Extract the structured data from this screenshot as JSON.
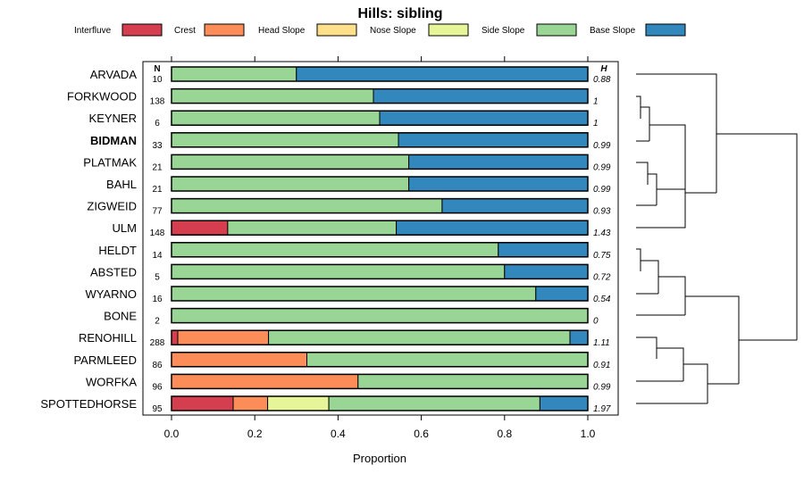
{
  "chart_data": {
    "type": "bar",
    "orientation": "horizontal",
    "stacked": true,
    "title": "Hills: sibling",
    "xlabel": "Proportion",
    "xlim": [
      0,
      1
    ],
    "x_ticks": [
      "0.0",
      "0.2",
      "0.4",
      "0.6",
      "0.8",
      "1.0"
    ],
    "n_header": "N",
    "h_header": "H",
    "legend_position": "top",
    "series": [
      {
        "name": "Interfluve",
        "color": "#d53e4f"
      },
      {
        "name": "Crest",
        "color": "#fc8d59"
      },
      {
        "name": "Head Slope",
        "color": "#fee08b"
      },
      {
        "name": "Nose Slope",
        "color": "#e6f598"
      },
      {
        "name": "Side Slope",
        "color": "#99d594"
      },
      {
        "name": "Base Slope",
        "color": "#3288bd"
      }
    ],
    "categories": [
      {
        "name": "ARVADA",
        "n": "10",
        "h": "0.88",
        "bold": false,
        "values": [
          0,
          0,
          0,
          0,
          0.3,
          0.7
        ]
      },
      {
        "name": "FORKWOOD",
        "n": "138",
        "h": "1",
        "bold": false,
        "values": [
          0,
          0,
          0,
          0,
          0.485,
          0.515
        ]
      },
      {
        "name": "KEYNER",
        "n": "6",
        "h": "1",
        "bold": false,
        "values": [
          0,
          0,
          0,
          0,
          0.5,
          0.5
        ]
      },
      {
        "name": "BIDMAN",
        "n": "33",
        "h": "0.99",
        "bold": true,
        "values": [
          0,
          0,
          0,
          0,
          0.545,
          0.455
        ]
      },
      {
        "name": "PLATMAK",
        "n": "21",
        "h": "0.99",
        "bold": false,
        "values": [
          0,
          0,
          0,
          0,
          0.57,
          0.43
        ]
      },
      {
        "name": "BAHL",
        "n": "21",
        "h": "0.99",
        "bold": false,
        "values": [
          0,
          0,
          0,
          0,
          0.57,
          0.43
        ]
      },
      {
        "name": "ZIGWEID",
        "n": "77",
        "h": "0.93",
        "bold": false,
        "values": [
          0,
          0,
          0,
          0,
          0.65,
          0.35
        ]
      },
      {
        "name": "ULM",
        "n": "148",
        "h": "1.43",
        "bold": false,
        "values": [
          0.135,
          0,
          0,
          0,
          0.405,
          0.46
        ]
      },
      {
        "name": "HELDT",
        "n": "14",
        "h": "0.75",
        "bold": false,
        "values": [
          0,
          0,
          0,
          0,
          0.785,
          0.215
        ]
      },
      {
        "name": "ABSTED",
        "n": "5",
        "h": "0.72",
        "bold": false,
        "values": [
          0,
          0,
          0,
          0,
          0.8,
          0.2
        ]
      },
      {
        "name": "WYARNO",
        "n": "16",
        "h": "0.54",
        "bold": false,
        "values": [
          0,
          0,
          0,
          0,
          0.875,
          0.125
        ]
      },
      {
        "name": "BONE",
        "n": "2",
        "h": "0",
        "bold": false,
        "values": [
          0,
          0,
          0,
          0,
          1.0,
          0
        ]
      },
      {
        "name": "RENOHILL",
        "n": "288",
        "h": "1.11",
        "bold": false,
        "values": [
          0.015,
          0.218,
          0,
          0,
          0.724,
          0.043
        ]
      },
      {
        "name": "PARMLEED",
        "n": "86",
        "h": "0.91",
        "bold": false,
        "values": [
          0,
          0.325,
          0,
          0,
          0.675,
          0
        ]
      },
      {
        "name": "WORFKA",
        "n": "96",
        "h": "0.99",
        "bold": false,
        "values": [
          0,
          0.448,
          0,
          0,
          0.552,
          0
        ]
      },
      {
        "name": "SPOTTEDHORSE",
        "n": "95",
        "h": "1.97",
        "bold": false,
        "values": [
          0.148,
          0.083,
          0,
          0.147,
          0.507,
          0.115
        ]
      }
    ]
  }
}
